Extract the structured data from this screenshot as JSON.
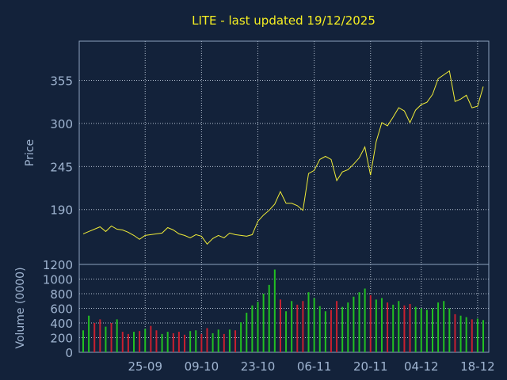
{
  "title": "LITE - last updated 19/12/2025",
  "colors": {
    "background": "#13223a",
    "frame": "#8ea3bf",
    "grid": "#b6c2d2",
    "text": "#9fb4d0",
    "title": "#f5ee22",
    "price_line": "#f0ec38",
    "vol_up": "#22c022",
    "vol_down": "#c82030"
  },
  "chart_data": [
    {
      "type": "line",
      "ylabel": "Price",
      "ylim": [
        120,
        405
      ],
      "yticks": [
        "190",
        "245",
        "300",
        "355"
      ],
      "x": [
        "2025-09-10",
        "2025-09-11",
        "2025-09-12",
        "2025-09-15",
        "2025-09-16",
        "2025-09-17",
        "2025-09-18",
        "2025-09-19",
        "2025-09-22",
        "2025-09-23",
        "2025-09-24",
        "2025-09-25",
        "2025-09-26",
        "2025-09-29",
        "2025-09-30",
        "2025-10-01",
        "2025-10-02",
        "2025-10-03",
        "2025-10-06",
        "2025-10-07",
        "2025-10-08",
        "2025-10-09",
        "2025-10-10",
        "2025-10-13",
        "2025-10-14",
        "2025-10-15",
        "2025-10-16",
        "2025-10-17",
        "2025-10-20",
        "2025-10-21",
        "2025-10-22",
        "2025-10-23",
        "2025-10-24",
        "2025-10-27",
        "2025-10-28",
        "2025-10-29",
        "2025-10-30",
        "2025-10-31",
        "2025-11-03",
        "2025-11-04",
        "2025-11-05",
        "2025-11-06",
        "2025-11-07",
        "2025-11-10",
        "2025-11-11",
        "2025-11-12",
        "2025-11-13",
        "2025-11-14",
        "2025-11-17",
        "2025-11-18",
        "2025-11-19",
        "2025-11-20",
        "2025-11-21",
        "2025-11-24",
        "2025-11-25",
        "2025-11-26",
        "2025-11-28",
        "2025-12-01",
        "2025-12-02",
        "2025-12-03",
        "2025-12-04",
        "2025-12-05",
        "2025-12-08",
        "2025-12-09",
        "2025-12-10",
        "2025-12-11",
        "2025-12-12",
        "2025-12-15",
        "2025-12-16",
        "2025-12-17",
        "2025-12-18",
        "2025-12-19"
      ],
      "xticks": [
        "25-09",
        "09-10",
        "23-10",
        "06-11",
        "20-11",
        "04-12",
        "18-12"
      ],
      "series": [
        {
          "values": [
            159,
            162,
            165,
            168,
            162,
            169,
            165,
            164,
            161,
            157,
            152,
            157,
            158,
            159,
            160,
            167,
            164,
            159,
            157,
            154,
            158,
            156,
            146,
            153,
            157,
            154,
            160,
            158,
            157,
            156,
            158,
            175,
            183,
            189,
            197,
            213,
            198,
            198,
            195,
            189,
            236,
            240,
            254,
            258,
            254,
            227,
            238,
            241,
            248,
            256,
            270,
            234,
            277,
            301,
            297,
            308,
            320,
            316,
            301,
            317,
            324,
            327,
            337,
            357,
            362,
            367,
            328,
            331,
            336,
            320,
            322,
            347
          ]
        }
      ]
    },
    {
      "type": "bar",
      "ylabel": "Volume (0000)",
      "ylim": [
        0,
        1200
      ],
      "yticks": [
        "0",
        "200",
        "400",
        "600",
        "800",
        "1000",
        "1200"
      ],
      "series": [
        {
          "name": "volume",
          "values": [
            300,
            500,
            400,
            450,
            350,
            400,
            450,
            280,
            250,
            280,
            290,
            320,
            360,
            300,
            250,
            280,
            260,
            280,
            240,
            290,
            300,
            250,
            330,
            260,
            310,
            250,
            310,
            300,
            410,
            540,
            640,
            690,
            800,
            920,
            1130,
            720,
            560,
            700,
            650,
            700,
            820,
            740,
            630,
            560,
            580,
            700,
            620,
            680,
            760,
            820,
            870,
            780,
            720,
            740,
            680,
            650,
            700,
            640,
            660,
            620,
            600,
            580,
            600,
            680,
            700,
            600,
            520,
            500,
            480,
            450,
            460,
            440
          ],
          "direction": [
            "up",
            "up",
            "down",
            "down",
            "up",
            "down",
            "up",
            "down",
            "down",
            "up",
            "down",
            "up",
            "down",
            "down",
            "up",
            "up",
            "down",
            "down",
            "down",
            "up",
            "up",
            "down",
            "down",
            "up",
            "up",
            "down",
            "up",
            "down",
            "up",
            "up",
            "up",
            "up",
            "up",
            "up",
            "up",
            "down",
            "up",
            "up",
            "down",
            "down",
            "up",
            "up",
            "up",
            "up",
            "down",
            "down",
            "up",
            "up",
            "up",
            "up",
            "up",
            "down",
            "up",
            "up",
            "down",
            "up",
            "up",
            "down",
            "down",
            "up",
            "up",
            "up",
            "up",
            "up",
            "up",
            "up",
            "down",
            "up",
            "up",
            "down",
            "up",
            "up"
          ]
        }
      ]
    }
  ]
}
